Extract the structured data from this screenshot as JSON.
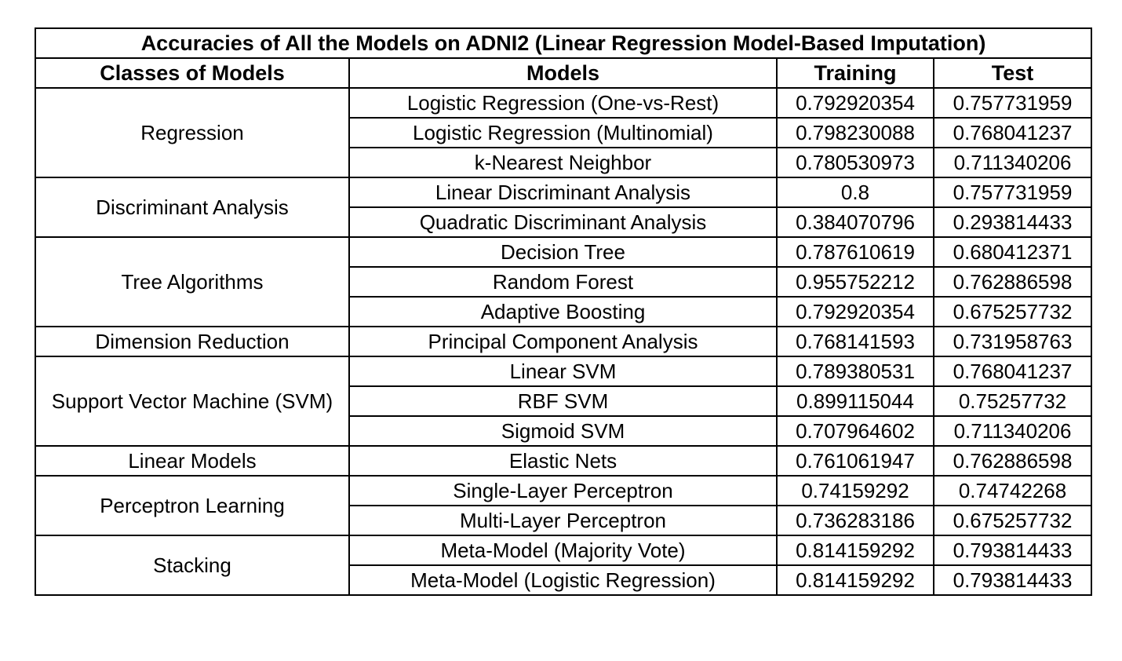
{
  "table": {
    "title": "Accuracies of All the Models on ADNI2 (Linear Regression Model-Based Imputation)",
    "headers": {
      "class": "Classes of Models",
      "model": "Models",
      "training": "Training",
      "test": "Test"
    },
    "groups": [
      {
        "name": "Regression",
        "rows": [
          {
            "model": "Logistic Regression (One-vs-Rest)",
            "training": "0.792920354",
            "test": "0.757731959"
          },
          {
            "model": "Logistic Regression (Multinomial)",
            "training": "0.798230088",
            "test": "0.768041237"
          },
          {
            "model": "k-Nearest Neighbor",
            "training": "0.780530973",
            "test": "0.711340206"
          }
        ]
      },
      {
        "name": "Discriminant Analysis",
        "rows": [
          {
            "model": "Linear Discriminant Analysis",
            "training": "0.8",
            "test": "0.757731959"
          },
          {
            "model": "Quadratic Discriminant Analysis",
            "training": "0.384070796",
            "test": "0.293814433"
          }
        ]
      },
      {
        "name": "Tree Algorithms",
        "rows": [
          {
            "model": "Decision Tree",
            "training": "0.787610619",
            "test": "0.680412371"
          },
          {
            "model": "Random Forest",
            "training": "0.955752212",
            "test": "0.762886598"
          },
          {
            "model": "Adaptive Boosting",
            "training": "0.792920354",
            "test": "0.675257732"
          }
        ]
      },
      {
        "name": "Dimension Reduction",
        "rows": [
          {
            "model": "Principal Component Analysis",
            "training": "0.768141593",
            "test": "0.731958763"
          }
        ]
      },
      {
        "name": "Support Vector Machine (SVM)",
        "rows": [
          {
            "model": "Linear SVM",
            "training": "0.789380531",
            "test": "0.768041237"
          },
          {
            "model": "RBF SVM",
            "training": "0.899115044",
            "test": "0.75257732"
          },
          {
            "model": "Sigmoid SVM",
            "training": "0.707964602",
            "test": "0.711340206"
          }
        ]
      },
      {
        "name": "Linear Models",
        "rows": [
          {
            "model": "Elastic Nets",
            "training": "0.761061947",
            "test": "0.762886598"
          }
        ]
      },
      {
        "name": "Perceptron Learning",
        "rows": [
          {
            "model": "Single-Layer Perceptron",
            "training": "0.74159292",
            "test": "0.74742268"
          },
          {
            "model": "Multi-Layer Perceptron",
            "training": "0.736283186",
            "test": "0.675257732"
          }
        ]
      },
      {
        "name": "Stacking",
        "rows": [
          {
            "model": "Meta-Model (Majority Vote)",
            "training": "0.814159292",
            "test": "0.793814433"
          },
          {
            "model": "Meta-Model (Logistic Regression)",
            "training": "0.814159292",
            "test": "0.793814433"
          }
        ]
      }
    ]
  }
}
